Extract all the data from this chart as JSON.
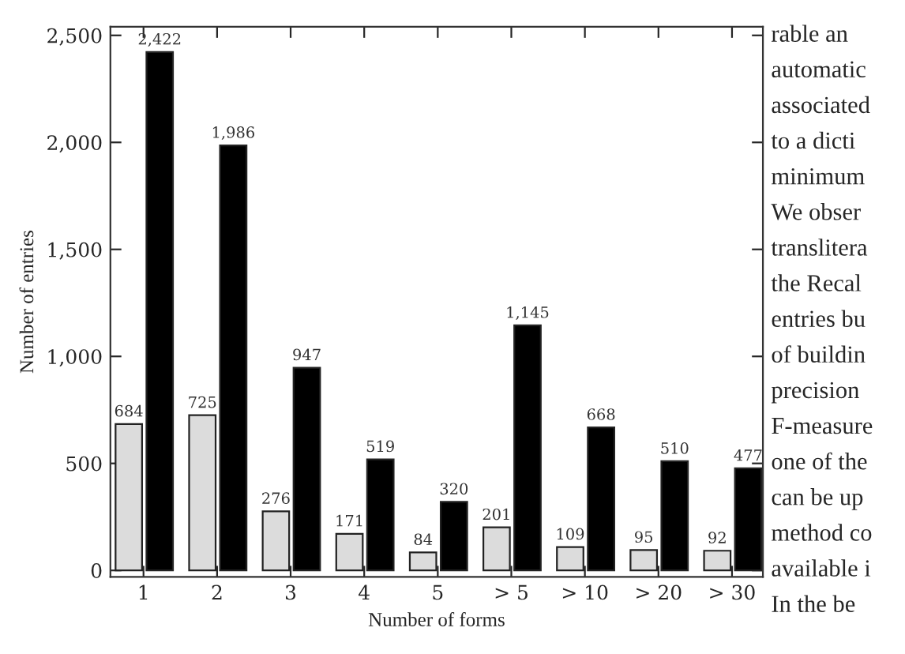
{
  "chart_data": {
    "type": "bar",
    "xlabel": "Number of forms",
    "ylabel": "Number of entries",
    "categories": [
      "1",
      "2",
      "3",
      "4",
      "5",
      "> 5",
      "> 10",
      "> 20",
      "> 30"
    ],
    "series": [
      {
        "color": "#dcdcdc",
        "values": [
          684,
          725,
          276,
          171,
          84,
          201,
          109,
          95,
          92
        ],
        "value_labels": [
          "684",
          "725",
          "276",
          "171",
          "84",
          "201",
          "109",
          "95",
          "92"
        ]
      },
      {
        "color": "#000000",
        "values": [
          2422,
          1986,
          947,
          519,
          320,
          1145,
          668,
          510,
          477
        ],
        "value_labels": [
          "2,422",
          "1,986",
          "947",
          "519",
          "320",
          "1,145",
          "668",
          "510",
          "477"
        ]
      }
    ],
    "ylim": [
      -30,
      2540
    ],
    "yticks": [
      0,
      500,
      {
        "value": 1000,
        "label": "1,000"
      },
      {
        "value": 1500,
        "label": "1,500"
      },
      {
        "value": 2000,
        "label": "2,000"
      },
      {
        "value": 2500,
        "label": "2,500"
      }
    ],
    "grid": false,
    "legend": false,
    "annotations": [
      "rable an",
      "automatic",
      "associated",
      "to a dicti",
      "minimum",
      "We obser",
      "translitera",
      "the Recal",
      "entries bu",
      "of buildin",
      "precision",
      "F-measure",
      "one of the",
      "can be up",
      "method co",
      "available i",
      "In the be"
    ]
  }
}
